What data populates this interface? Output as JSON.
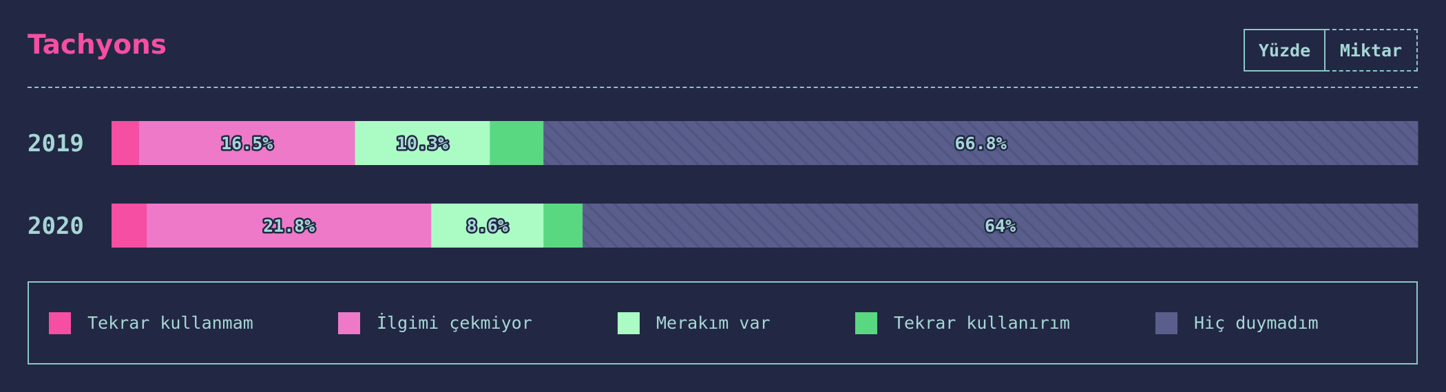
{
  "title": "Tachyons",
  "toggle": {
    "percent_label": "Yüzde",
    "amount_label": "Miktar",
    "active": "percent"
  },
  "colors": {
    "background": "#222843",
    "title": "#f54ea2",
    "text": "#a6d6d6",
    "border": "#8cc7c7"
  },
  "chart_data": {
    "type": "bar",
    "orientation": "horizontal",
    "stacked": true,
    "normalized": true,
    "categories": [
      "2019",
      "2020"
    ],
    "series": [
      {
        "name": "Tekrar kullanmam",
        "color": "#f54ea2",
        "values": [
          2.1,
          2.7
        ]
      },
      {
        "name": "İlgimi çekmiyor",
        "color": "#ee79c8",
        "values": [
          16.5,
          21.8
        ]
      },
      {
        "name": "Merakım var",
        "color": "#abfcc4",
        "values": [
          10.3,
          8.6
        ]
      },
      {
        "name": "Tekrar kullanırım",
        "color": "#5ad881",
        "values": [
          4.1,
          3.0
        ]
      },
      {
        "name": "Hiç duymadım",
        "color": "#5a5e8c",
        "hatched": true,
        "values": [
          66.8,
          64
        ]
      }
    ],
    "data_labels": [
      [
        "",
        "16.5%",
        "10.3%",
        "",
        "66.8%"
      ],
      [
        "",
        "21.8%",
        "8.6%",
        "",
        "64%"
      ]
    ],
    "legend_position": "bottom",
    "grid": false
  }
}
